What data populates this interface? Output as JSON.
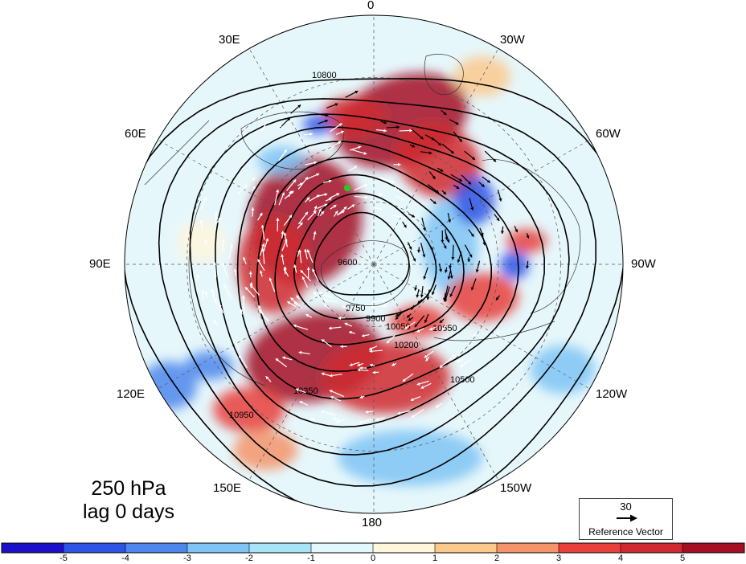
{
  "title": {
    "line1": "250 hPa",
    "line2": "lag 0 days"
  },
  "longitude_labels": [
    "0",
    "30W",
    "60W",
    "90W",
    "120W",
    "150W",
    "180",
    "150E",
    "120E",
    "90E",
    "60E",
    "30E"
  ],
  "contour_labels": [
    "10800",
    "10650",
    "10500",
    "10350",
    "10200",
    "10050",
    "9900",
    "9750",
    "9600",
    "10950"
  ],
  "reference_vector": {
    "value": "30",
    "label": "Reference Vector"
  },
  "colorbar": {
    "ticks": [
      "-5",
      "-4",
      "-3",
      "-2",
      "-1",
      "0",
      "1",
      "2",
      "3",
      "4",
      "5"
    ],
    "colors": [
      "#1c0fc8",
      "#2e54e6",
      "#4d86ec",
      "#7fc4f5",
      "#a8e3f8",
      "#e2f8fd",
      "#fff6dc",
      "#fcc98d",
      "#f5946a",
      "#e8413c",
      "#d02a30",
      "#a50f24"
    ]
  }
}
